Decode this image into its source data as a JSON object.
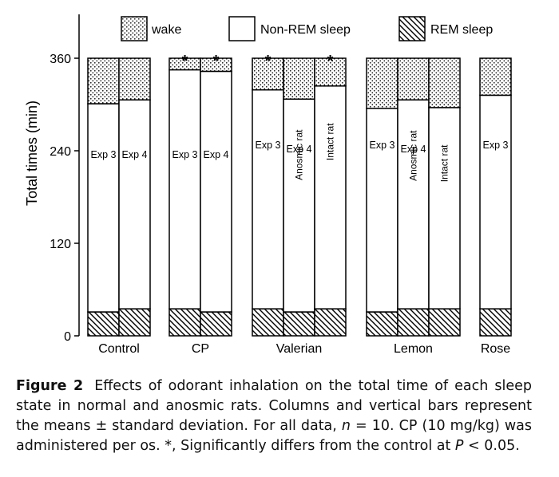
{
  "chart_data": {
    "type": "stacked-bar",
    "ylabel": "Total times (min)",
    "ylim": [
      0,
      360
    ],
    "yticks": [
      "0",
      "120",
      "240",
      "360"
    ],
    "legend": [
      {
        "name": "wake",
        "pattern": "dots"
      },
      {
        "name": "Non-REM sleep",
        "pattern": "plain"
      },
      {
        "name": "REM sleep",
        "pattern": "hatch"
      }
    ],
    "legend_position": "top",
    "groups": [
      {
        "label": "Control",
        "bars": [
          {
            "label": "Exp 3",
            "rem": 31,
            "nrem": 270,
            "wake": 59,
            "star": false
          },
          {
            "label": "Exp 4",
            "rem": 35,
            "nrem": 271,
            "wake": 54,
            "star": false
          }
        ]
      },
      {
        "label": "CP",
        "bars": [
          {
            "label": "Exp 3",
            "rem": 35,
            "nrem": 310,
            "wake": 15,
            "star": true
          },
          {
            "label": "Exp 4",
            "rem": 31,
            "nrem": 312,
            "wake": 17,
            "star": true
          }
        ]
      },
      {
        "label": "Valerian",
        "bars": [
          {
            "label": "Exp 3",
            "rem": 35,
            "nrem": 284,
            "wake": 41,
            "star": true
          },
          {
            "label": "Anosmic rat",
            "rem": 31,
            "nrem": 276,
            "wake": 53,
            "star": false
          },
          {
            "label": "Intact rat",
            "rem": 35,
            "nrem": 289,
            "wake": 36,
            "star": true
          }
        ]
      },
      {
        "label": "Lemon",
        "bars": [
          {
            "label": "Exp 3",
            "rem": 31,
            "nrem": 264,
            "wake": 65,
            "star": false
          },
          {
            "label": "Anosmic rat",
            "rem": 35,
            "nrem": 271,
            "wake": 54,
            "star": false
          },
          {
            "label": "Intact rat",
            "rem": 35,
            "nrem": 261,
            "wake": 64,
            "star": false
          }
        ]
      },
      {
        "label": "Rose",
        "bars": [
          {
            "label": "Exp 3",
            "rem": 35,
            "nrem": 277,
            "wake": 48,
            "star": false
          }
        ]
      }
    ],
    "group_inner_labels": [
      "",
      "",
      "Exp 4",
      "Exp 4",
      ""
    ],
    "star_symbol": "*"
  },
  "caption": {
    "figure_label": "Figure 2",
    "text_1": "Effects of odorant inhalation on the total time of each sleep state in normal and anosmic rats. Columns and vertical bars represent the means ± standard deviation. For all data, ",
    "n_symbol": "n",
    "text_2": " = 10. CP (10 mg/kg) was administered per os. *, Significantly differs from the control at ",
    "p_symbol": "P",
    "text_3": " < 0.05."
  }
}
